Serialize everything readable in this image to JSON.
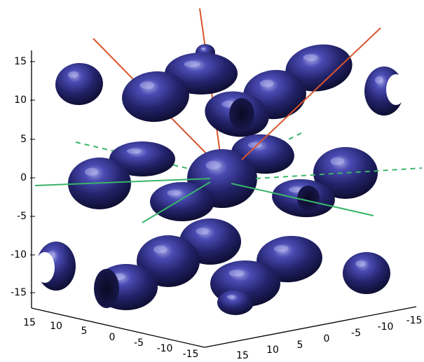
{
  "chart_data": {
    "type": "scatter3d",
    "title": "",
    "xlabel": "",
    "ylabel": "",
    "zlabel": "",
    "z_axis": {
      "ticks": [
        "15",
        "10",
        "5",
        "0",
        "-5",
        "-10",
        "-15"
      ]
    },
    "left_floor_axis": {
      "ticks": [
        "15",
        "10",
        "5",
        "0",
        "-5",
        "-10",
        "-15"
      ]
    },
    "right_floor_axis": {
      "ticks": [
        "15",
        "10",
        "5",
        "0",
        "-5",
        "-10",
        "-15"
      ]
    },
    "colors": {
      "surfaces": "#23236b",
      "highlight": "#9da0e2",
      "red_lines": "#d9552e",
      "green_lines": "#39b56a"
    },
    "surfaces": [
      {
        "shape": "ellipsoid",
        "count": 22
      },
      {
        "shape": "cut ellipsoid",
        "count": 5
      }
    ],
    "line_sets": [
      {
        "color": "red",
        "style": "solid",
        "count": 4
      },
      {
        "color": "green",
        "style": "solid",
        "count": 3
      },
      {
        "color": "green",
        "style": "dashed",
        "count": 3
      }
    ]
  }
}
